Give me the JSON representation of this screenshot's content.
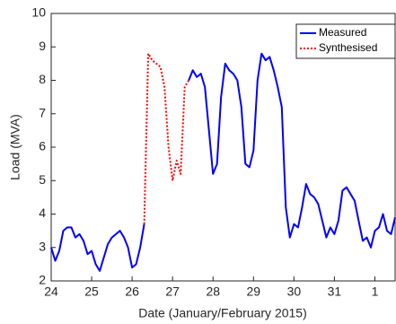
{
  "chart_data": {
    "type": "line",
    "xlabel": "Date (January/February 2015)",
    "ylabel": "Load (MVA)",
    "x": [
      24.0,
      24.1,
      24.2,
      24.3,
      24.4,
      24.5,
      24.6,
      24.7,
      24.8,
      24.9,
      25.0,
      25.1,
      25.2,
      25.3,
      25.4,
      25.5,
      25.6,
      25.7,
      25.8,
      25.9,
      26.0,
      26.1,
      26.2,
      26.3,
      26.4,
      26.5,
      26.6,
      26.7,
      26.8,
      26.9,
      27.0,
      27.1,
      27.2,
      27.3,
      27.4,
      27.5,
      27.6,
      27.7,
      27.8,
      27.9,
      28.0,
      28.1,
      28.2,
      28.3,
      28.4,
      28.5,
      28.6,
      28.7,
      28.8,
      28.9,
      29.0,
      29.1,
      29.2,
      29.3,
      29.4,
      29.5,
      29.6,
      29.7,
      29.8,
      29.9,
      30.0,
      30.1,
      30.2,
      30.3,
      30.4,
      30.5,
      30.6,
      30.7,
      30.8,
      30.9,
      31.0,
      31.1,
      31.2,
      31.3,
      31.4,
      31.5,
      31.6,
      31.7,
      31.8,
      31.9,
      32.0,
      32.1,
      32.2,
      32.3,
      32.4,
      32.5
    ],
    "series": [
      {
        "name": "Measured",
        "color": "#0000ff",
        "style": "solid",
        "values": [
          3.0,
          2.6,
          2.9,
          3.5,
          3.6,
          3.6,
          3.3,
          3.4,
          3.2,
          2.8,
          2.9,
          2.5,
          2.3,
          2.7,
          3.1,
          3.3,
          3.4,
          3.5,
          3.3,
          3.0,
          2.4,
          2.5,
          3.0,
          3.7,
          null,
          null,
          null,
          null,
          null,
          null,
          null,
          null,
          null,
          null,
          8.0,
          8.3,
          8.1,
          8.2,
          7.8,
          6.5,
          5.2,
          5.5,
          7.5,
          8.5,
          8.3,
          8.2,
          8.0,
          7.2,
          5.5,
          5.4,
          5.9,
          8.0,
          8.8,
          8.6,
          8.7,
          8.3,
          7.8,
          7.2,
          4.2,
          3.3,
          3.7,
          3.6,
          4.2,
          4.9,
          4.6,
          4.5,
          4.3,
          3.8,
          3.3,
          3.6,
          3.4,
          3.8,
          4.7,
          4.8,
          4.6,
          4.4,
          3.8,
          3.2,
          3.3,
          3.0,
          3.5,
          3.6,
          4.0,
          3.5,
          3.4,
          3.9
        ]
      },
      {
        "name": "Synthesised",
        "color": "#ff0000",
        "style": "dotted",
        "values": [
          null,
          null,
          null,
          null,
          null,
          null,
          null,
          null,
          null,
          null,
          null,
          null,
          null,
          null,
          null,
          null,
          null,
          null,
          null,
          null,
          null,
          null,
          null,
          3.7,
          8.8,
          8.6,
          8.5,
          8.4,
          7.8,
          6.0,
          5.0,
          5.6,
          5.2,
          7.8,
          8.0,
          null,
          null,
          null,
          null,
          null,
          null,
          null,
          null,
          null,
          null,
          null,
          null,
          null,
          null,
          null,
          null,
          null,
          null,
          null,
          null,
          null,
          null,
          null,
          null,
          null,
          null,
          null,
          null,
          null,
          null,
          null,
          null,
          null,
          null,
          null,
          null,
          null,
          null,
          null,
          null,
          null,
          null,
          null,
          null,
          null,
          null,
          null,
          null,
          null,
          null,
          null
        ]
      }
    ],
    "xlim": [
      24,
      32.5
    ],
    "xticks": [
      24,
      25,
      26,
      27,
      28,
      29,
      30,
      31,
      {
        "value": 32,
        "label": "1"
      }
    ],
    "ylim": [
      2,
      10
    ],
    "yticks": [
      2,
      3,
      4,
      5,
      6,
      7,
      8,
      9,
      10
    ],
    "legend": "upper right"
  }
}
